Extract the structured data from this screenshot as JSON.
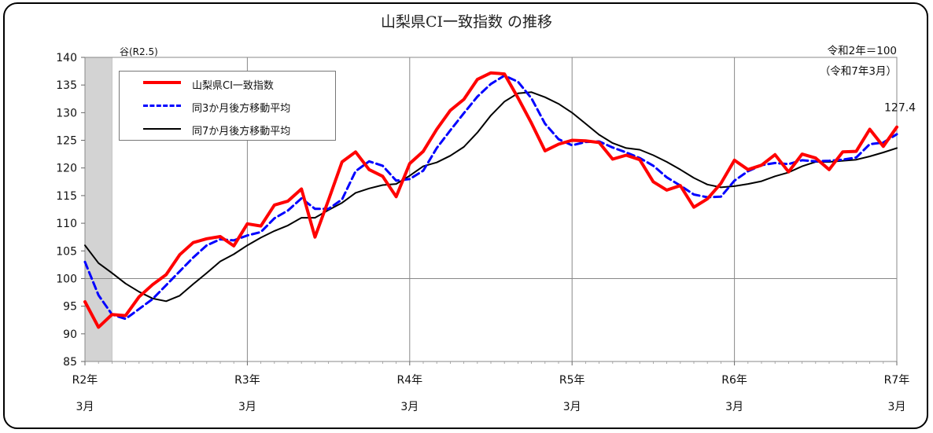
{
  "chart_data": {
    "type": "line",
    "title": "山梨県CI一致指数 の推移",
    "unit_note": [
      "令和2年＝100",
      "（令和7年3月）"
    ],
    "shade_label": "谷(R2.5)",
    "end_label": "127.4",
    "ylim": [
      85,
      140
    ],
    "yticks": [
      85,
      90,
      95,
      100,
      105,
      110,
      115,
      120,
      125,
      130,
      135,
      140
    ],
    "xticks": [
      {
        "label": "R2年",
        "sub": "3月"
      },
      {
        "label": "R3年",
        "sub": "3月"
      },
      {
        "label": "R4年",
        "sub": "3月"
      },
      {
        "label": "R5年",
        "sub": "3月"
      },
      {
        "label": "R6年",
        "sub": "3月"
      },
      {
        "label": "R7年",
        "sub": "3月"
      }
    ],
    "x_start": "R2年3月",
    "x_end": "R7年3月",
    "shade_months": [
      0,
      2
    ],
    "series": [
      {
        "name": "山梨県CI一致指数",
        "color": "#ff0000",
        "style": "solid",
        "values": [
          95.8,
          91.2,
          93.5,
          93.3,
          96.7,
          98.9,
          100.7,
          104.3,
          106.5,
          107.2,
          107.6,
          105.9,
          109.9,
          109.5,
          113.3,
          114.0,
          116.2,
          107.5,
          114.2,
          121.1,
          122.9,
          119.7,
          118.5,
          114.8,
          120.8,
          123.0,
          127.0,
          130.4,
          132.4,
          136.0,
          137.2,
          137.0,
          132.7,
          128.1,
          123.1,
          124.3,
          125.0,
          124.9,
          124.6,
          121.6,
          122.3,
          121.5,
          117.5,
          116.0,
          116.8,
          112.9,
          114.4,
          117.2,
          121.4,
          119.7,
          120.5,
          122.4,
          119.3,
          122.5,
          121.8,
          119.7,
          122.9,
          123.0,
          127.0,
          123.9,
          127.4
        ]
      },
      {
        "name": "同3か月後方移動平均",
        "color": "#0000ff",
        "style": "dashed",
        "values": [
          103.0,
          97.0,
          93.5,
          92.7,
          94.5,
          96.3,
          98.8,
          101.3,
          103.8,
          106.0,
          107.1,
          106.9,
          107.8,
          108.4,
          110.9,
          112.3,
          114.5,
          112.6,
          112.6,
          114.3,
          119.4,
          121.2,
          120.4,
          117.7,
          118.0,
          119.5,
          123.6,
          126.8,
          129.9,
          132.9,
          135.2,
          136.7,
          135.6,
          132.6,
          128.0,
          125.2,
          124.1,
          124.7,
          124.8,
          123.7,
          122.8,
          121.8,
          120.4,
          118.3,
          116.8,
          115.2,
          114.7,
          114.8,
          117.7,
          119.4,
          120.5,
          120.9,
          120.7,
          121.4,
          121.2,
          121.3,
          121.5,
          121.9,
          124.3,
          124.6,
          126.1
        ]
      },
      {
        "name": "同7か月後方移動平均",
        "color": "#000000",
        "style": "solid",
        "values": [
          106.0,
          102.8,
          101.0,
          99.1,
          97.6,
          96.4,
          95.9,
          96.9,
          99.0,
          101.0,
          103.1,
          104.4,
          106.0,
          107.4,
          108.6,
          109.6,
          111.0,
          111.0,
          112.4,
          113.7,
          115.5,
          116.3,
          116.9,
          117.1,
          118.6,
          120.3,
          121.0,
          122.2,
          123.8,
          126.4,
          129.5,
          132.0,
          133.5,
          133.7,
          132.8,
          131.6,
          130.0,
          128.0,
          126.0,
          124.5,
          123.6,
          123.3,
          122.3,
          121.1,
          119.7,
          118.2,
          117.0,
          116.5,
          116.7,
          117.1,
          117.6,
          118.5,
          119.2,
          120.3,
          121.1,
          121.1,
          121.3,
          121.5,
          122.1,
          122.8,
          123.6
        ]
      }
    ],
    "grid": true,
    "legend_position": "top-left"
  }
}
